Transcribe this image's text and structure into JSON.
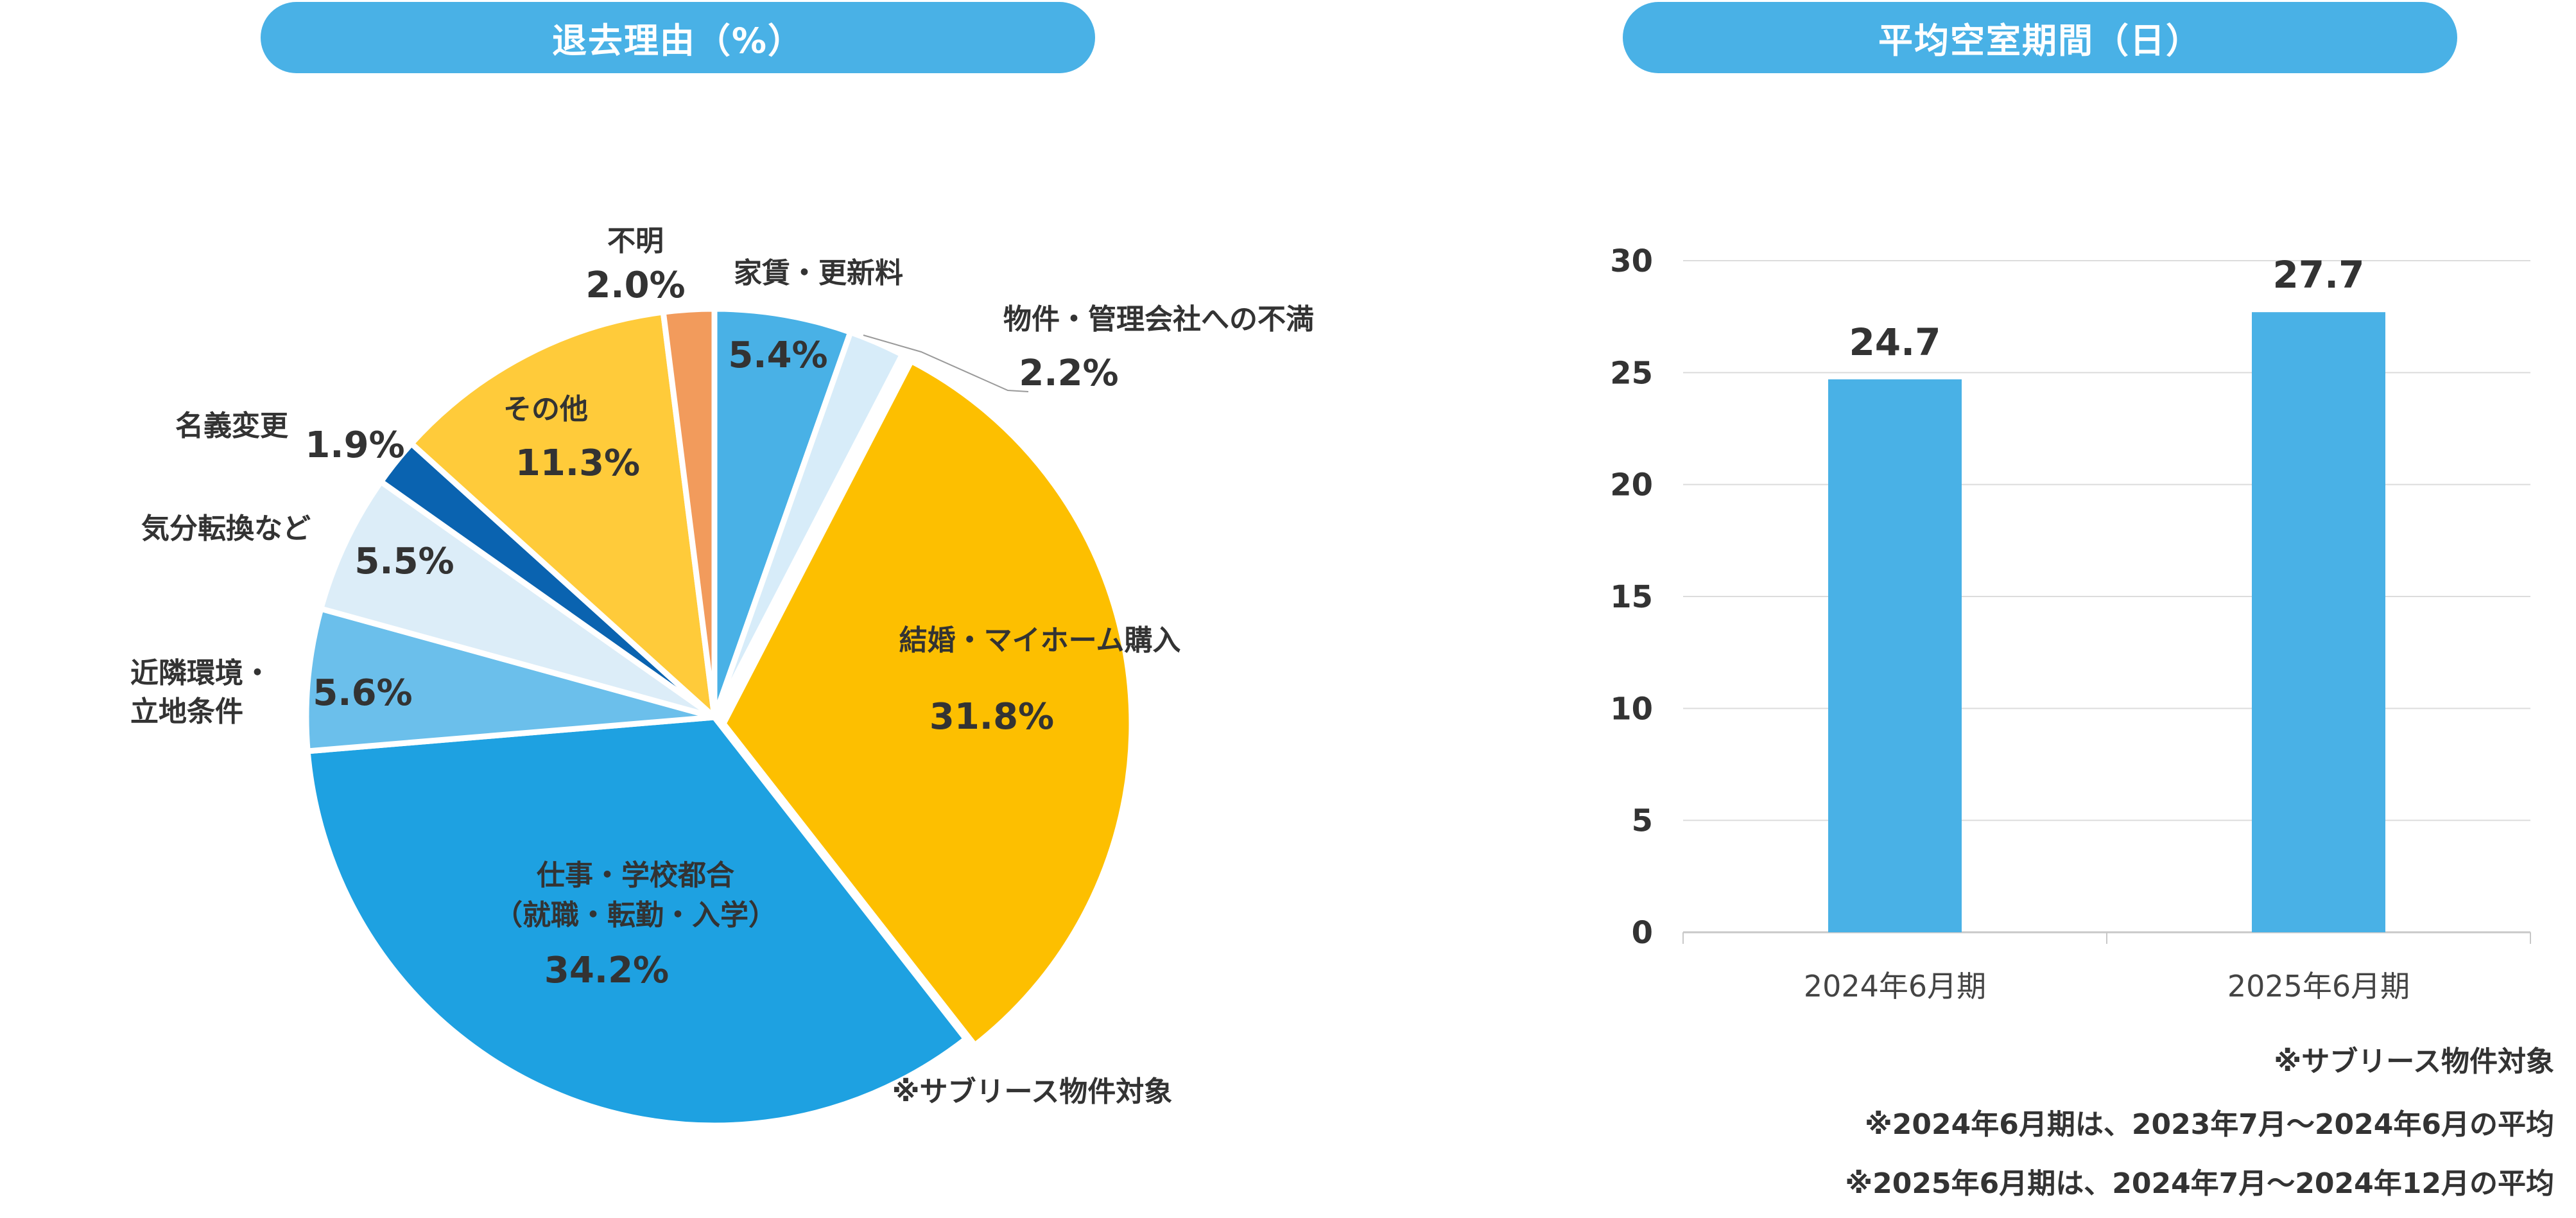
{
  "left_title": "退去理由（%）",
  "right_title": "平均空室期間（日）",
  "pie_note": "※サブリース物件対象",
  "notes": [
    "※サブリース物件対象",
    "※2024年6月期は、2023年7月～2024年6月の平均",
    "※2025年6月期は、2024年7月～2024年12月の平均"
  ],
  "chart_data": [
    {
      "type": "pie",
      "title": "退去理由（%）",
      "slices": [
        {
          "label": "家賃・更新料",
          "value": 5.4,
          "color": "#49b1e6"
        },
        {
          "label": "物件・管理会社への不満",
          "value": 2.2,
          "color": "#d7ecf9"
        },
        {
          "label": "結婚・マイホーム購入",
          "value": 31.8,
          "color": "#fdbf00"
        },
        {
          "label": "仕事・学校都合\n（就職・転勤・入学）",
          "value": 34.2,
          "color": "#1ea1e1"
        },
        {
          "label": "近隣環境・\n立地条件",
          "value": 5.6,
          "color": "#6bbfeb"
        },
        {
          "label": "気分転換など",
          "value": 5.5,
          "color": "#dcedf8"
        },
        {
          "label": "名義変更",
          "value": 1.9,
          "color": "#0a63b0"
        },
        {
          "label": "その他",
          "value": 11.3,
          "color": "#ffcb3a"
        },
        {
          "label": "不明",
          "value": 2.0,
          "color": "#f29b5c"
        }
      ]
    },
    {
      "type": "bar",
      "title": "平均空室期間（日）",
      "categories": [
        "2024年6月期",
        "2025年6月期"
      ],
      "values": [
        24.7,
        27.7
      ],
      "value_labels": [
        "24.7",
        "27.7"
      ],
      "ylim": [
        0,
        30
      ],
      "yticks": [
        "0",
        "5",
        "10",
        "15",
        "20",
        "25",
        "30"
      ],
      "grid": true,
      "bar_color": "#49b1e6"
    }
  ]
}
